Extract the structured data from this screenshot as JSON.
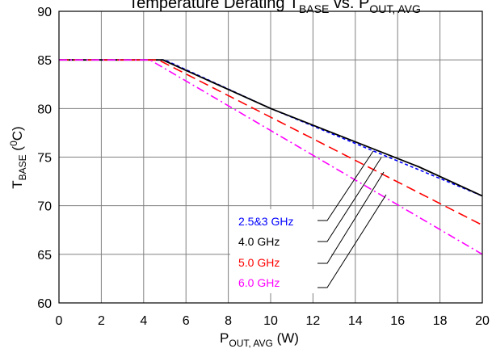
{
  "chart_data": {
    "type": "line",
    "title": {
      "main": "Temperature Derating T",
      "sub1": "BASE",
      "mid": " vs. P",
      "sub2": "OUT, AVG"
    },
    "xlabel": {
      "main": "P",
      "sub": "OUT, AVG",
      "tail": " (W)"
    },
    "ylabel": {
      "main": "T",
      "sub": "BASE",
      "tail": " (",
      "sup": "0",
      "end": "C)"
    },
    "xlim": [
      0,
      20
    ],
    "ylim": [
      60,
      90
    ],
    "xticks": [
      0,
      2,
      4,
      6,
      8,
      10,
      12,
      14,
      16,
      18,
      20
    ],
    "yticks": [
      60,
      65,
      70,
      75,
      80,
      85,
      90
    ],
    "grid": true,
    "legend_placement": "bottom-center",
    "series": [
      {
        "name": "2.5&3 GHz",
        "color": "#0000ff",
        "dash": "short-dash",
        "x": [
          0,
          5.0,
          10,
          20
        ],
        "y": [
          85,
          85,
          80,
          71
        ]
      },
      {
        "name": "4.0 GHz",
        "color": "#000000",
        "dash": "solid",
        "x": [
          0,
          4.9,
          10,
          17,
          20
        ],
        "y": [
          85,
          85,
          80,
          74,
          71
        ]
      },
      {
        "name": "5.0 GHz",
        "color": "#ff0000",
        "dash": "long-dash",
        "x": [
          0,
          4.7,
          20
        ],
        "y": [
          85,
          85,
          68
        ]
      },
      {
        "name": "6.0 GHz",
        "color": "#ff00ff",
        "dash": "dash-dot",
        "x": [
          0,
          4.3,
          20
        ],
        "y": [
          85,
          85,
          65
        ]
      }
    ]
  }
}
